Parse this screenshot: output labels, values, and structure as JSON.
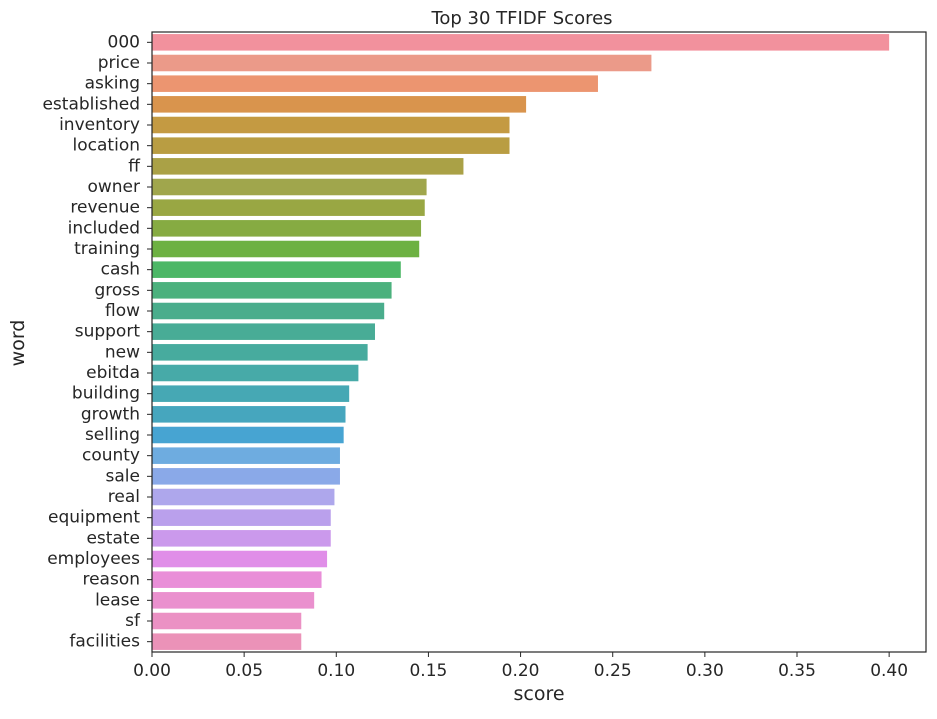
{
  "chart_data": {
    "type": "bar",
    "orientation": "horizontal",
    "title": "Top 30 TFIDF Scores",
    "xlabel": "score",
    "ylabel": "word",
    "xlim": [
      0,
      0.42
    ],
    "xticks": [
      "0.00",
      "0.05",
      "0.10",
      "0.15",
      "0.20",
      "0.25",
      "0.30",
      "0.35",
      "0.40"
    ],
    "grid": false,
    "categories": [
      "000",
      "price",
      "asking",
      "established",
      "inventory",
      "location",
      "ff",
      "owner",
      "revenue",
      "included",
      "training",
      "cash",
      "gross",
      "flow",
      "support",
      "new",
      "ebitda",
      "building",
      "growth",
      "selling",
      "county",
      "sale",
      "real",
      "equipment",
      "estate",
      "employees",
      "reason",
      "lease",
      "sf",
      "facilities"
    ],
    "values": [
      0.4,
      0.271,
      0.242,
      0.203,
      0.194,
      0.194,
      0.169,
      0.149,
      0.148,
      0.146,
      0.145,
      0.135,
      0.13,
      0.126,
      0.121,
      0.117,
      0.112,
      0.107,
      0.105,
      0.104,
      0.102,
      0.102,
      0.099,
      0.097,
      0.097,
      0.095,
      0.092,
      0.088,
      0.081,
      0.081
    ],
    "colors": [
      "#f2919d",
      "#eb9a89",
      "#ec9570",
      "#d9944d",
      "#c49a42",
      "#b99d42",
      "#aaa146",
      "#a0a64c",
      "#99a743",
      "#86ab42",
      "#6db142",
      "#4cb766",
      "#4bb17d",
      "#4aad8c",
      "#48ac96",
      "#47ab9e",
      "#47aaa8",
      "#46a8b4",
      "#46a6be",
      "#47a4d2",
      "#6eace0",
      "#8aa9e8",
      "#aea7ec",
      "#baa0ec",
      "#cb99ec",
      "#e08ee8",
      "#e98ed8",
      "#ea90ce",
      "#eb91c4",
      "#eb92b8"
    ]
  }
}
